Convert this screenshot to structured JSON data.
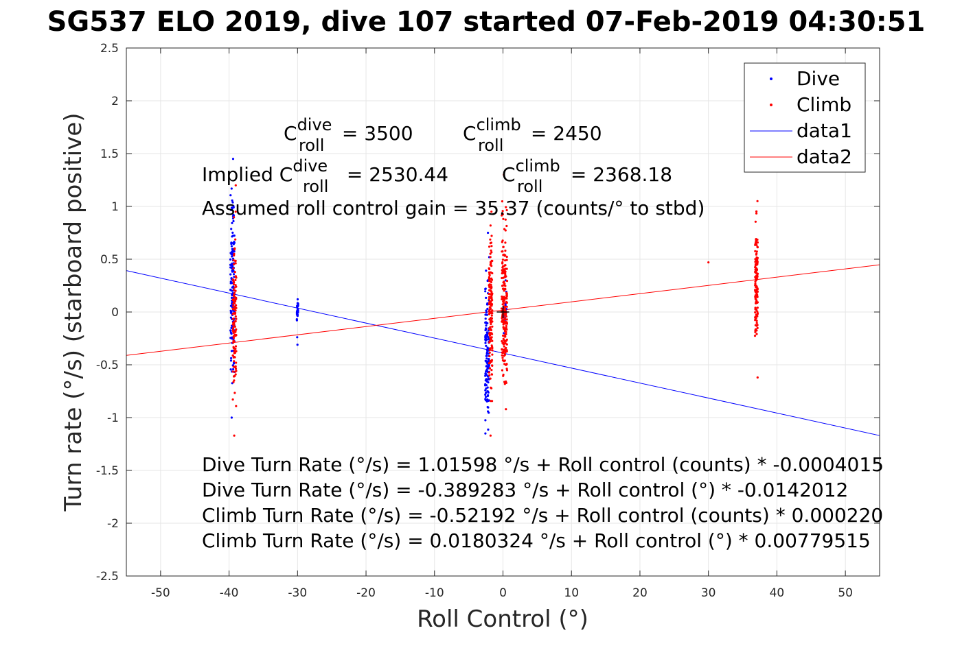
{
  "title": "SG537 ELO 2019, dive 107 started 07-Feb-2019 04:30:51",
  "chart_data": {
    "type": "scatter",
    "xlabel": "Roll Control (°)",
    "ylabel": "Turn rate (°/s) (starboard positive)",
    "xlim": [
      -55,
      55
    ],
    "ylim": [
      -2.5,
      2.5
    ],
    "xticks": [
      -50,
      -40,
      -30,
      -20,
      -10,
      0,
      10,
      20,
      30,
      40,
      50
    ],
    "xtick_labels": [
      "-50",
      "-40",
      "-30",
      "-20",
      "-10",
      "0",
      "10",
      "20",
      "30",
      "40",
      "50"
    ],
    "yticks": [
      -2.5,
      -2,
      -1.5,
      -1,
      -0.5,
      0,
      0.5,
      1,
      1.5,
      2,
      2.5
    ],
    "ytick_labels": [
      "-2.5",
      "-2",
      "-1.5",
      "-1",
      "-0.5",
      "0",
      "0.5",
      "1",
      "1.5",
      "2",
      "2.5"
    ],
    "grid": true,
    "legend": {
      "position": "top-right",
      "entries": [
        {
          "label": "Dive",
          "kind": "marker",
          "color": "#0000ff"
        },
        {
          "label": "Climb",
          "kind": "marker",
          "color": "#ff0000"
        },
        {
          "label": "data1",
          "kind": "line",
          "color": "#0000ff"
        },
        {
          "label": "data2",
          "kind": "line",
          "color": "#ff0000"
        }
      ]
    },
    "series": [
      {
        "name": "Dive",
        "kind": "scatter",
        "color": "#0000ff",
        "clusters": [
          {
            "x": -39.5,
            "xspread": 0.6,
            "ymin": -1.0,
            "ymax": 1.45,
            "ycenter": 0.2,
            "n": 160
          },
          {
            "x": -30,
            "xspread": 0.2,
            "ymin": -0.31,
            "ymax": 0.12,
            "ycenter": 0.05,
            "n": 30
          },
          {
            "x": -2.3,
            "xspread": 0.6,
            "ymin": -1.15,
            "ymax": 0.75,
            "ycenter": -0.45,
            "n": 140
          },
          {
            "x": 0.3,
            "xspread": 0.4,
            "ymin": -0.2,
            "ymax": 0.3,
            "ycenter": 0.0,
            "n": 20
          }
        ]
      },
      {
        "name": "Climb",
        "kind": "scatter",
        "color": "#ff0000",
        "clusters": [
          {
            "x": -39.2,
            "xspread": 0.5,
            "ymin": -1.17,
            "ymax": 1.2,
            "ycenter": -0.1,
            "n": 130
          },
          {
            "x": -1.8,
            "xspread": 0.5,
            "ymin": -1.17,
            "ymax": 0.95,
            "ycenter": 0.0,
            "n": 150
          },
          {
            "x": 0.2,
            "xspread": 0.8,
            "ymin": -0.92,
            "ymax": 1.3,
            "ycenter": 0.0,
            "n": 220
          },
          {
            "x": 37,
            "xspread": 0.4,
            "ymin": -0.62,
            "ymax": 1.05,
            "ycenter": 0.3,
            "n": 130
          },
          {
            "x": 30,
            "xspread": 0.0,
            "ymin": 0.47,
            "ymax": 0.47,
            "ycenter": 0.47,
            "n": 1
          }
        ]
      },
      {
        "name": "data1",
        "kind": "line",
        "color": "#0000ff",
        "x": [
          -55,
          55
        ],
        "y": [
          0.392,
          -1.17
        ]
      },
      {
        "name": "data2",
        "kind": "line",
        "color": "#ff0000",
        "x": [
          -55,
          55
        ],
        "y": [
          -0.411,
          0.447
        ]
      }
    ],
    "marker": {
      "x": 0,
      "y": 0,
      "shape": "plus",
      "color": "#000000"
    },
    "annotations": {
      "c_roll_dive": {
        "prefix": "C",
        "sup": "dive",
        "sub": "roll",
        "value_text": " = 3500"
      },
      "c_roll_climb": {
        "prefix": "C",
        "sup": "climb",
        "sub": "roll",
        "value_text": " = 2450"
      },
      "implied_dive": {
        "prefix": "Implied C",
        "sup": "dive",
        "sub": "roll",
        "value_text": " = 2530.44"
      },
      "implied_climb": {
        "prefix": "C",
        "sup": "climb",
        "sub": "roll",
        "value_text": " = 2368.18"
      },
      "gain": "Assumed roll control gain = 35.37 (counts/° to stbd)",
      "equations": [
        "Dive Turn Rate (°/s) = 1.01598 °/s + Roll control (counts) * -0.0004015",
        "Dive Turn Rate (°/s) = -0.389283 °/s + Roll control (°) * -0.0142012",
        "Climb Turn Rate (°/s) = -0.52192 °/s + Roll control (counts) * 0.000220",
        "Climb Turn Rate (°/s) = 0.0180324 °/s + Roll control (°) * 0.00779515"
      ]
    }
  }
}
